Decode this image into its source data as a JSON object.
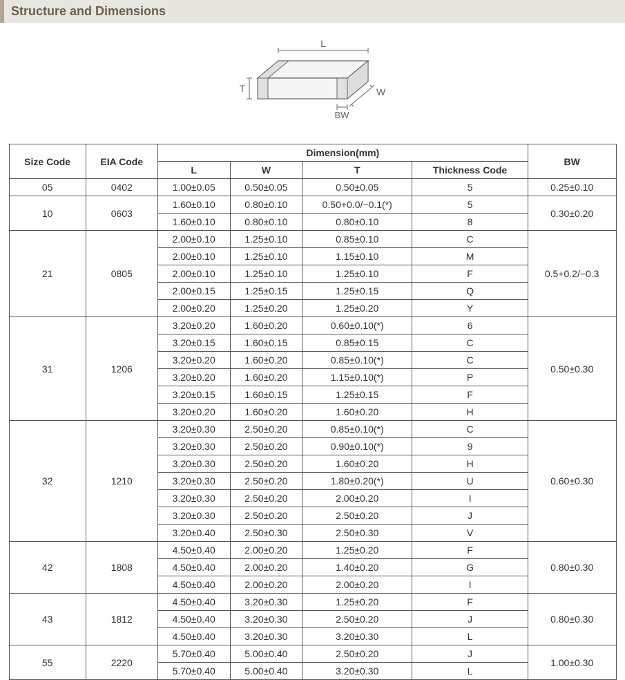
{
  "section_title": "Structure and Dimensions",
  "diagram": {
    "labels": {
      "L": "L",
      "W": "W",
      "T": "T",
      "BW": "BW"
    },
    "stroke_color": "#666666",
    "fill_color": "#f0f0f0",
    "text_color": "#666666",
    "fontsize": 14
  },
  "table": {
    "headers": {
      "size_code": "Size Code",
      "eia_code": "EIA Code",
      "dimension": "Dimension(mm)",
      "L": "L",
      "W": "W",
      "T": "T",
      "thickness_code": "Thickness Code",
      "BW": "BW"
    },
    "groups": [
      {
        "size_code": "05",
        "eia_code": "0402",
        "bw": "0.25±0.10",
        "rows": [
          {
            "L": "1.00±0.05",
            "W": "0.50±0.05",
            "T": "0.50±0.05",
            "tc": "5"
          }
        ]
      },
      {
        "size_code": "10",
        "eia_code": "0603",
        "bw": "0.30±0.20",
        "rows": [
          {
            "L": "1.60±0.10",
            "W": "0.80±0.10",
            "T": "0.50+0.0/−0.1(*)",
            "tc": "5"
          },
          {
            "L": "1.60±0.10",
            "W": "0.80±0.10",
            "T": "0.80±0.10",
            "tc": "8"
          }
        ]
      },
      {
        "size_code": "21",
        "eia_code": "0805",
        "bw": "0.5+0.2/−0.3",
        "rows": [
          {
            "L": "2.00±0.10",
            "W": "1.25±0.10",
            "T": "0.85±0.10",
            "tc": "C"
          },
          {
            "L": "2.00±0.10",
            "W": "1.25±0.10",
            "T": "1.15±0.10",
            "tc": "M"
          },
          {
            "L": "2.00±0.10",
            "W": "1.25±0.10",
            "T": "1.25±0.10",
            "tc": "F"
          },
          {
            "L": "2.00±0.15",
            "W": "1.25±0.15",
            "T": "1.25±0.15",
            "tc": "Q"
          },
          {
            "L": "2.00±0.20",
            "W": "1.25±0.20",
            "T": "1.25±0.20",
            "tc": "Y"
          }
        ]
      },
      {
        "size_code": "31",
        "eia_code": "1206",
        "bw": "0.50±0.30",
        "rows": [
          {
            "L": "3.20±0.20",
            "W": "1.60±0.20",
            "T": "0.60±0.10(*)",
            "tc": "6"
          },
          {
            "L": "3.20±0.15",
            "W": "1.60±0.15",
            "T": "0.85±0.15",
            "tc": "C"
          },
          {
            "L": "3.20±0.20",
            "W": "1.60±0.20",
            "T": "0.85±0.10(*)",
            "tc": "C"
          },
          {
            "L": "3.20±0.20",
            "W": "1.60±0.20",
            "T": "1.15±0.10(*)",
            "tc": "P"
          },
          {
            "L": "3.20±0.15",
            "W": "1.60±0.15",
            "T": "1.25±0.15",
            "tc": "F"
          },
          {
            "L": "3.20±0.20",
            "W": "1.60±0.20",
            "T": "1.60±0.20",
            "tc": "H"
          }
        ]
      },
      {
        "size_code": "32",
        "eia_code": "1210",
        "bw": "0.60±0.30",
        "rows": [
          {
            "L": "3.20±0.30",
            "W": "2.50±0.20",
            "T": "0.85±0.10(*)",
            "tc": "C"
          },
          {
            "L": "3.20±0.30",
            "W": "2.50±0.20",
            "T": "0.90±0.10(*)",
            "tc": "9"
          },
          {
            "L": "3.20±0.30",
            "W": "2.50±0.20",
            "T": "1.60±0.20",
            "tc": "H"
          },
          {
            "L": "3.20±0.30",
            "W": "2.50±0.20",
            "T": "1.80±0.20(*)",
            "tc": "U"
          },
          {
            "L": "3.20±0.30",
            "W": "2.50±0.20",
            "T": "2.00±0.20",
            "tc": "I"
          },
          {
            "L": "3.20±0.30",
            "W": "2.50±0.20",
            "T": "2.50±0.20",
            "tc": "J"
          },
          {
            "L": "3.20±0.40",
            "W": "2.50±0.30",
            "T": "2.50±0.30",
            "tc": "V"
          }
        ]
      },
      {
        "size_code": "42",
        "eia_code": "1808",
        "bw": "0.80±0.30",
        "rows": [
          {
            "L": "4.50±0.40",
            "W": "2.00±0.20",
            "T": "1.25±0.20",
            "tc": "F"
          },
          {
            "L": "4.50±0.40",
            "W": "2.00±0.20",
            "T": "1.40±0.20",
            "tc": "G"
          },
          {
            "L": "4.50±0.40",
            "W": "2.00±0.20",
            "T": "2.00±0.20",
            "tc": "I"
          }
        ]
      },
      {
        "size_code": "43",
        "eia_code": "1812",
        "bw": "0.80±0.30",
        "rows": [
          {
            "L": "4.50±0.40",
            "W": "3.20±0.30",
            "T": "1.25±0.20",
            "tc": "F"
          },
          {
            "L": "4.50±0.40",
            "W": "3.20±0.30",
            "T": "2.50±0.20",
            "tc": "J"
          },
          {
            "L": "4.50±0.40",
            "W": "3.20±0.30",
            "T": "3.20±0.30",
            "tc": "L"
          }
        ]
      },
      {
        "size_code": "55",
        "eia_code": "2220",
        "bw": "1.00±0.30",
        "rows": [
          {
            "L": "5.70±0.40",
            "W": "5.00±0.40",
            "T": "2.50±0.20",
            "tc": "J"
          },
          {
            "L": "5.70±0.40",
            "W": "5.00±0.40",
            "T": "3.20±0.30",
            "tc": "L"
          }
        ]
      }
    ]
  },
  "colors": {
    "header_bg": "#e8e6e0",
    "header_bar": "#b0a890",
    "header_text": "#6b5f4a",
    "border": "#555555",
    "text": "#333333"
  }
}
